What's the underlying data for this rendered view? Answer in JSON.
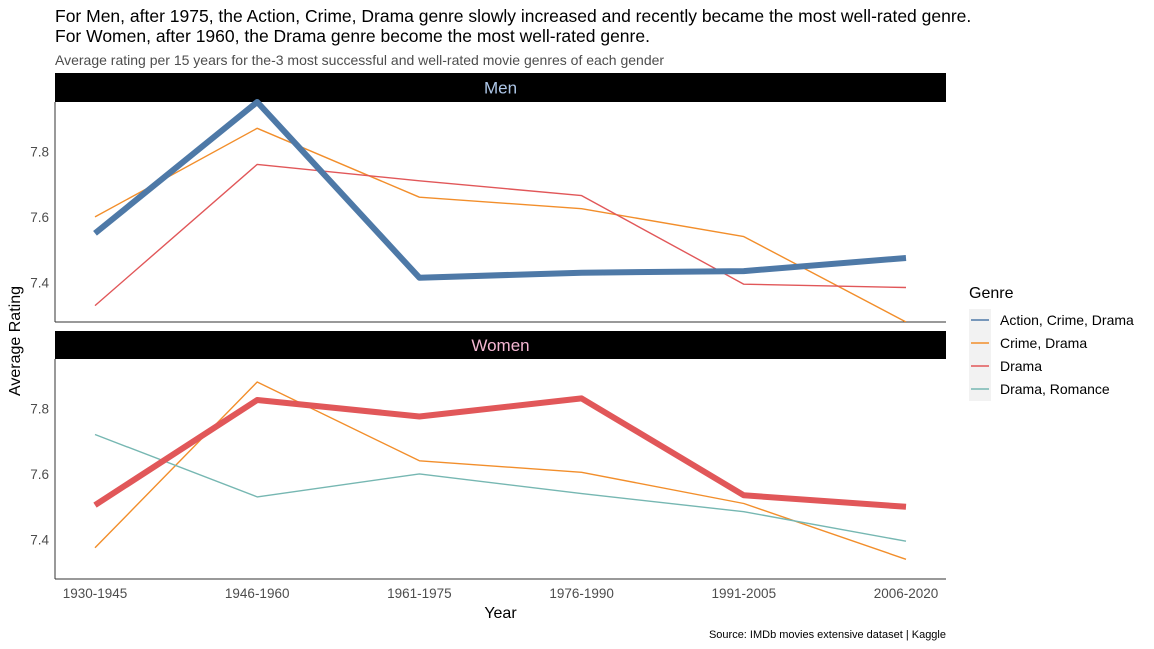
{
  "title_lines": [
    "For Men, after 1975, the Action, Crime, Drama genre slowly increased and recently became the most well-rated genre.",
    "For Women, after 1960, the Drama genre become the most well-rated genre."
  ],
  "subtitle": "Average rating per 15 years for the-3 most successful and well-rated movie genres of each gender",
  "caption": "Source: IMDb movies extensive dataset | Kaggle",
  "chart_data": {
    "type": "line",
    "xlabel": "Year",
    "ylabel": "Average Rating",
    "categories": [
      "1930-1945",
      "1946-1960",
      "1961-1975",
      "1976-1990",
      "1991-2005",
      "2006-2020"
    ],
    "ylim": [
      7.28,
      7.95
    ],
    "yticks": [
      7.4,
      7.6,
      7.8
    ],
    "grid": false,
    "legend": {
      "title": "Genre",
      "placement": "right",
      "entries": [
        {
          "name": "Action, Crime, Drama",
          "color": "#4e79a7"
        },
        {
          "name": "Crime, Drama",
          "color": "#f28e2b"
        },
        {
          "name": "Drama",
          "color": "#e15759"
        },
        {
          "name": "Drama, Romance",
          "color": "#76b7b2"
        }
      ]
    },
    "facets": [
      {
        "label": "Men",
        "label_color": "#aec7e8",
        "series": [
          {
            "name": "Crime, Drama",
            "color": "#f28e2b",
            "emphasis": false,
            "values": [
              7.6,
              7.87,
              7.66,
              7.625,
              7.54,
              7.28
            ]
          },
          {
            "name": "Drama",
            "color": "#e15759",
            "emphasis": false,
            "values": [
              7.33,
              7.76,
              7.71,
              7.665,
              7.395,
              7.385
            ]
          },
          {
            "name": "Action, Crime, Drama",
            "color": "#4e79a7",
            "emphasis": true,
            "values": [
              7.55,
              7.95,
              7.415,
              7.43,
              7.435,
              7.475
            ]
          }
        ]
      },
      {
        "label": "Women",
        "label_color": "#f4b6d2",
        "series": [
          {
            "name": "Crime, Drama",
            "color": "#f28e2b",
            "emphasis": false,
            "values": [
              7.375,
              7.88,
              7.64,
              7.605,
              7.51,
              7.34
            ]
          },
          {
            "name": "Drama, Romance",
            "color": "#76b7b2",
            "emphasis": false,
            "values": [
              7.72,
              7.53,
              7.6,
              7.54,
              7.485,
              7.395
            ]
          },
          {
            "name": "Drama",
            "color": "#e15759",
            "emphasis": true,
            "values": [
              7.505,
              7.825,
              7.775,
              7.83,
              7.535,
              7.5
            ]
          }
        ]
      }
    ]
  }
}
